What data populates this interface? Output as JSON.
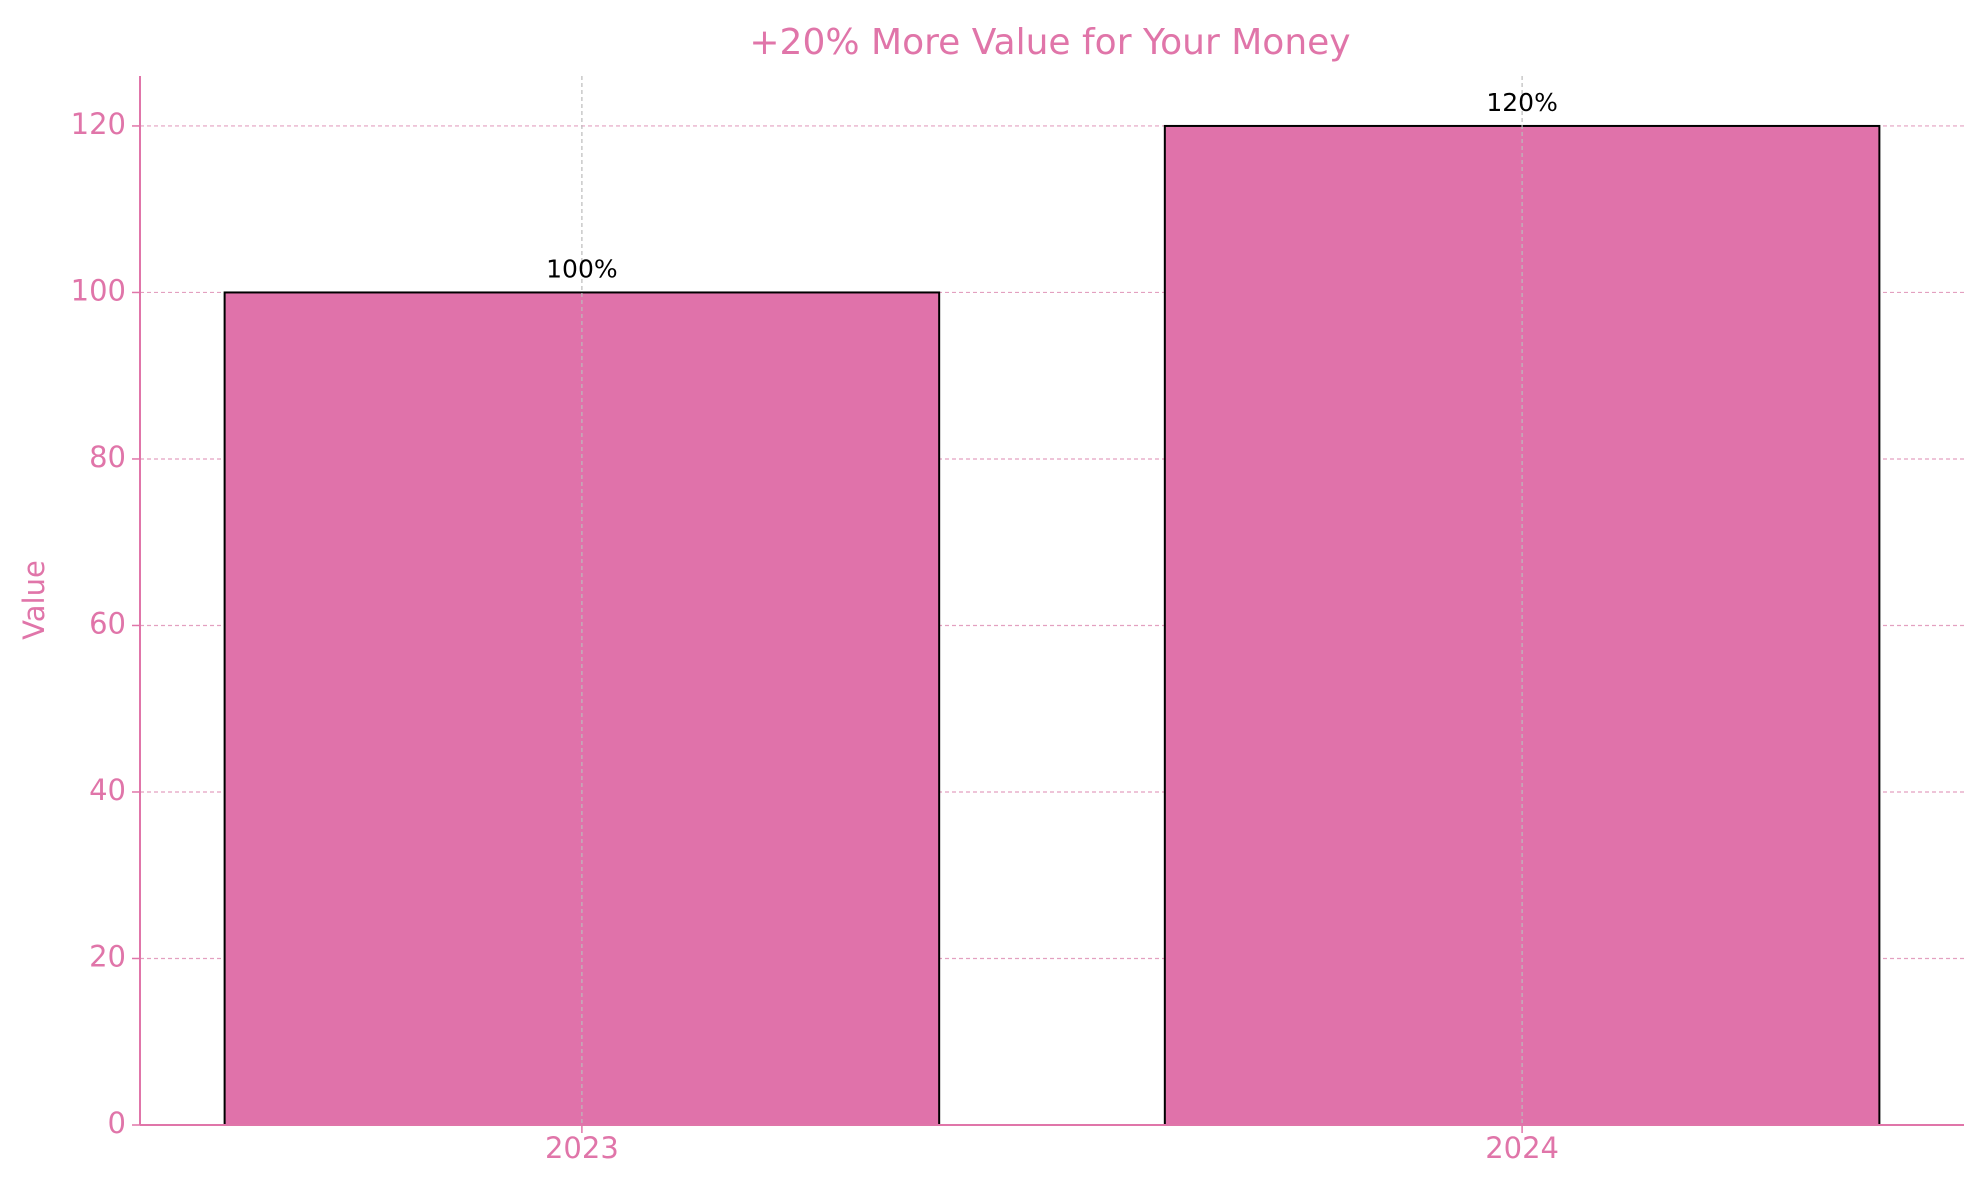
{
  "chart_data": {
    "type": "bar",
    "title": "+20% More Value for Your Money",
    "y_label": "Value",
    "categories": [
      "2023",
      "2024"
    ],
    "values": [
      100,
      120
    ],
    "value_labels": [
      "100%",
      "120%"
    ],
    "color": "#e072aa",
    "ylim": [
      0,
      126
    ],
    "yticks": [
      0,
      20,
      40,
      60,
      80,
      100,
      120
    ],
    "grid": true
  }
}
